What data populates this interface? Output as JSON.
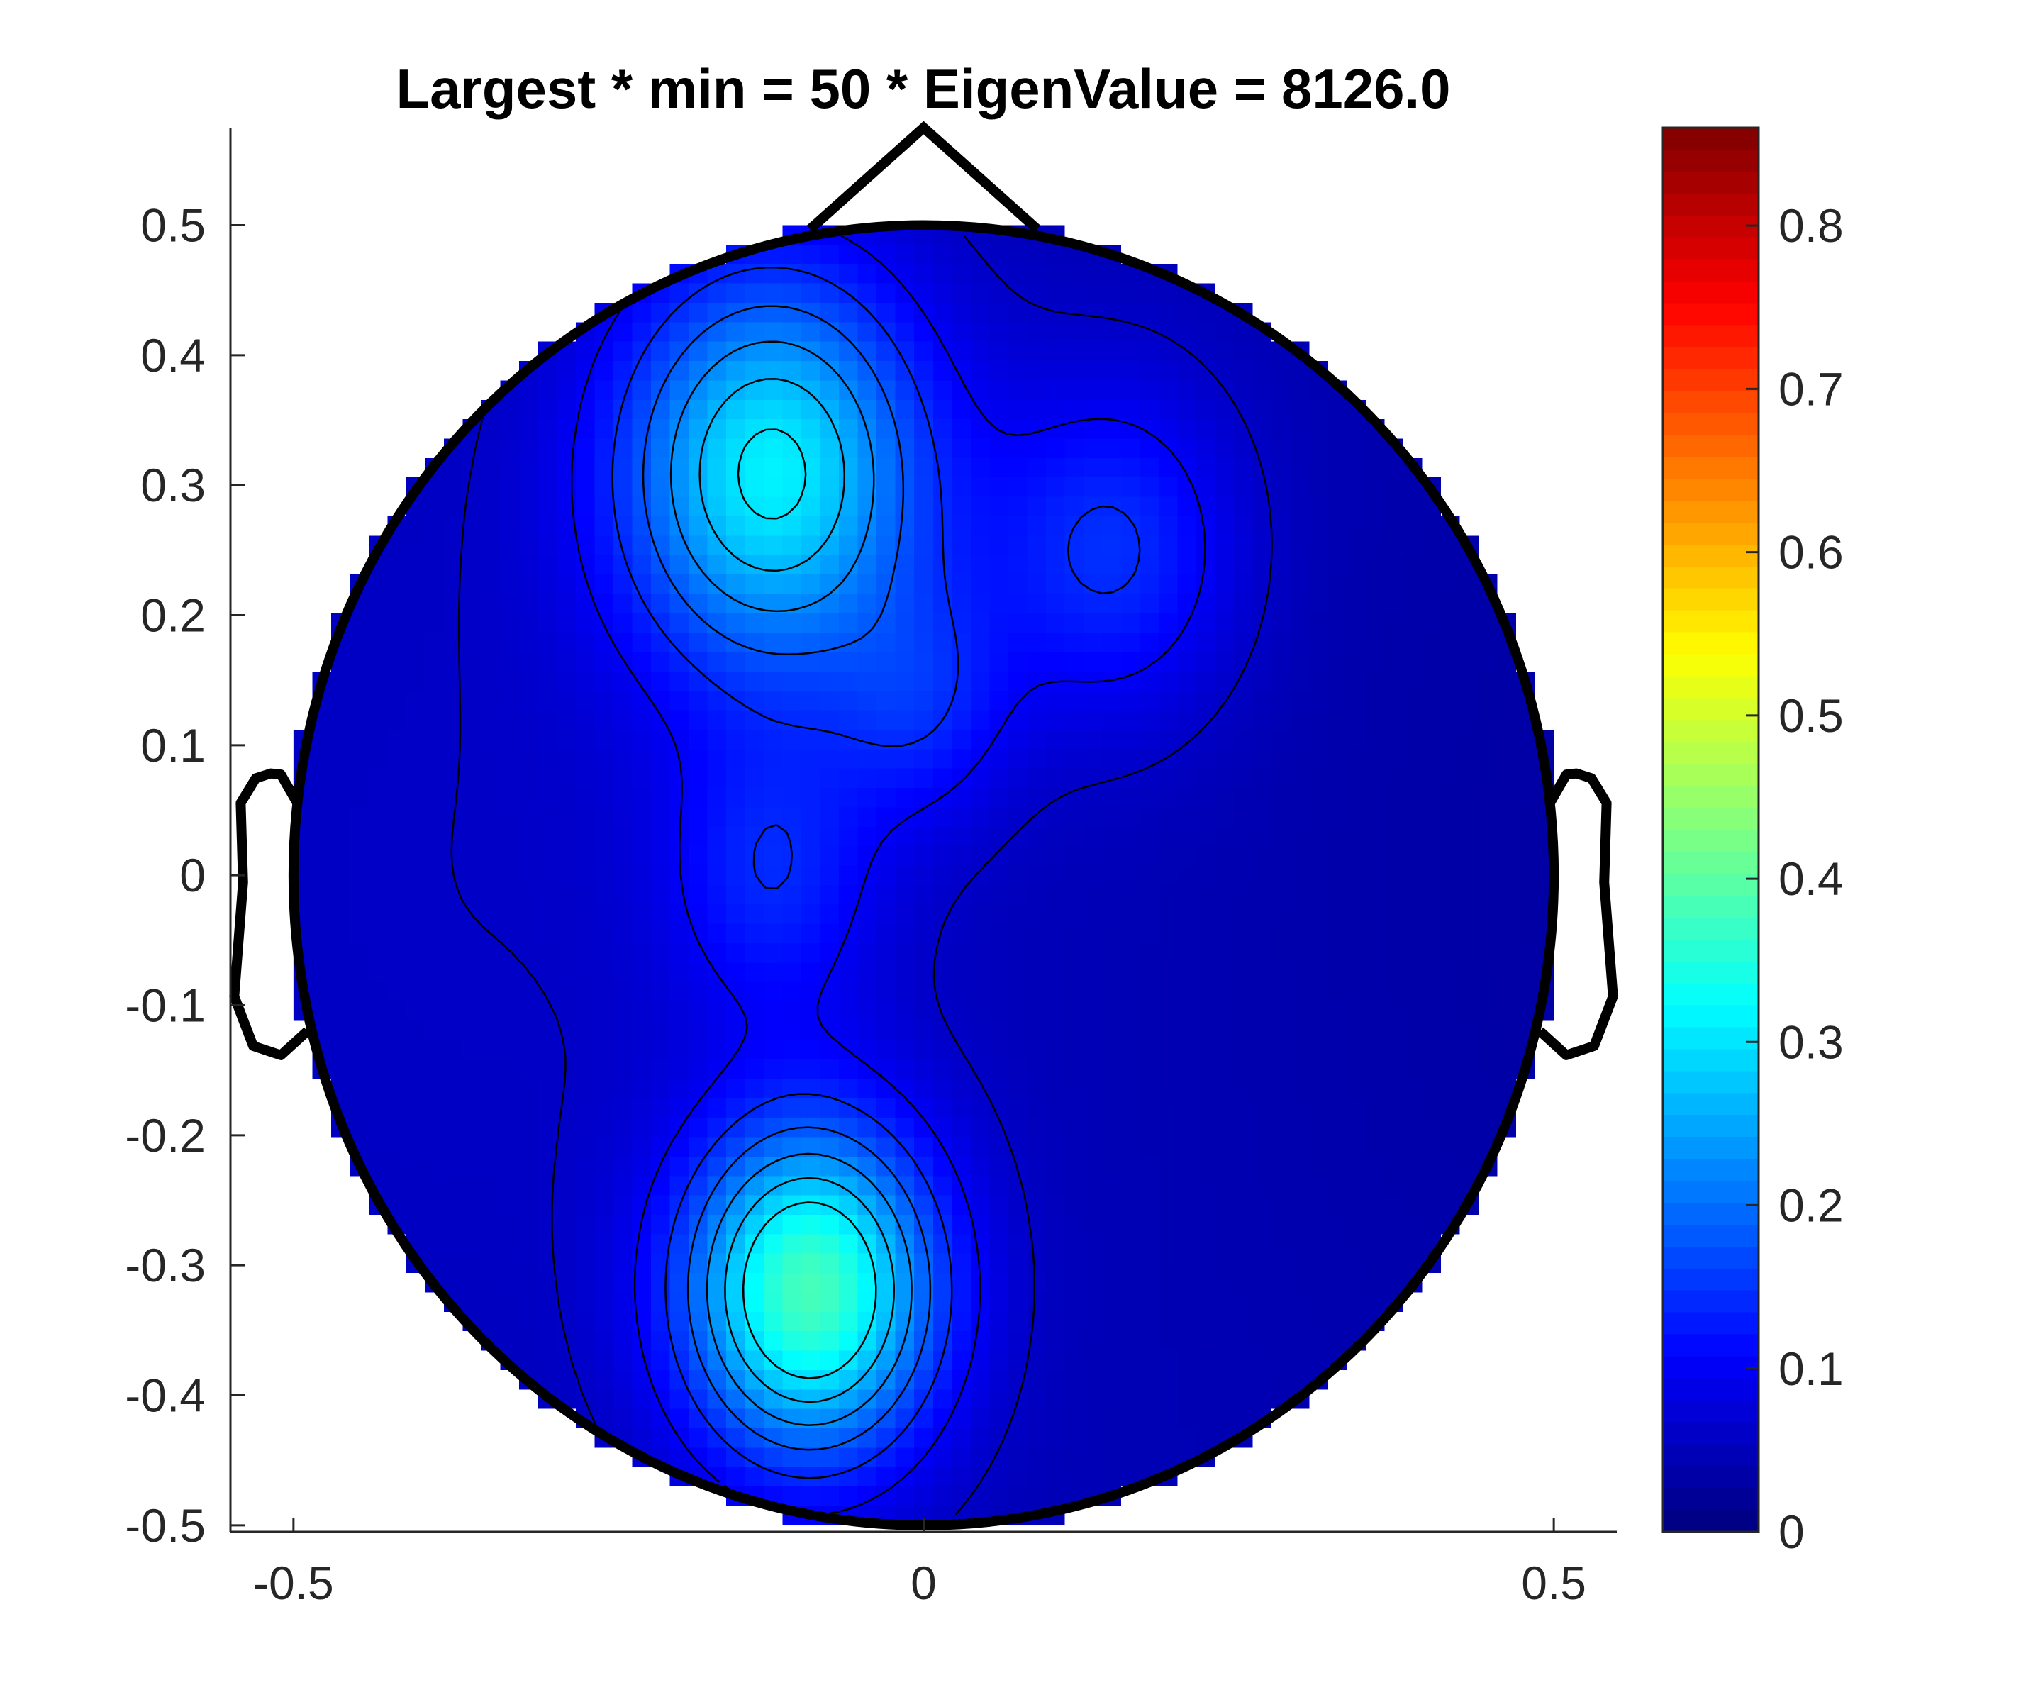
{
  "chart_data": {
    "type": "heatmap",
    "title": "Largest * min = 50 * EigenValue = 8126.0",
    "xlabel": "",
    "ylabel": "",
    "xlim": [
      -0.55,
      0.55
    ],
    "ylim": [
      -0.505,
      0.575
    ],
    "x_ticks": [
      -0.5,
      0,
      0.5
    ],
    "x_tick_labels": [
      "-0.5",
      "0",
      "0.5"
    ],
    "y_ticks": [
      0.5,
      0.4,
      0.3,
      0.2,
      0.1,
      0,
      -0.1,
      -0.2,
      -0.3,
      -0.4,
      -0.5
    ],
    "y_tick_labels": [
      "0.5",
      "0.4",
      "0.3",
      "0.2",
      "0.1",
      "0",
      "-0.1",
      "-0.2",
      "-0.3",
      "-0.4",
      "-0.5"
    ],
    "colormap": "jet",
    "colorbar": {
      "range": [
        0,
        0.86
      ],
      "ticks": [
        0,
        0.1,
        0.2,
        0.3,
        0.4,
        0.5,
        0.6,
        0.7,
        0.8
      ],
      "tick_labels": [
        "0",
        "0.1",
        "0.2",
        "0.3",
        "0.4",
        "0.5",
        "0.6",
        "0.7",
        "0.8"
      ]
    },
    "head": {
      "radius": 0.5,
      "center": [
        0,
        0
      ]
    },
    "blobs": [
      {
        "x": -0.12,
        "y": 0.31,
        "peak": 0.26,
        "sigma": 0.085
      },
      {
        "x": -0.09,
        "y": -0.32,
        "peak": 0.33,
        "sigma": 0.07
      },
      {
        "x": 0.15,
        "y": 0.25,
        "peak": 0.1,
        "sigma": 0.07
      },
      {
        "x": -0.12,
        "y": 0.0,
        "peak": 0.08,
        "sigma": 0.06
      },
      {
        "x": 0.0,
        "y": 0.13,
        "peak": 0.07,
        "sigma": 0.05
      }
    ],
    "baseline_value": 0.06,
    "contour_levels": [
      0.06,
      0.1,
      0.14,
      0.18,
      0.22,
      0.26,
      0.3
    ]
  },
  "colors": {
    "axis": "#262626",
    "outline": "#000000"
  }
}
